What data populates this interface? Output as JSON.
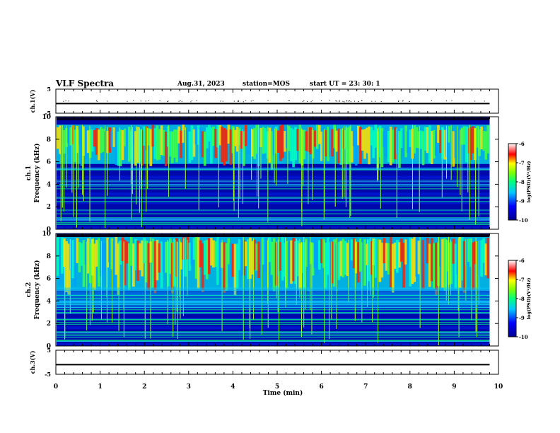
{
  "header": {
    "title": "VLF Spectra",
    "date": "Aug.31, 2023",
    "station": "station=MOS",
    "start_ut": "start  UT =   23: 30: 1"
  },
  "chart_data": [
    {
      "type": "line",
      "panel": "ch1-waveform",
      "ylabel": "ch.1(V)",
      "ylim": [
        -5,
        5
      ],
      "yticks": [
        "5",
        "-5"
      ],
      "xlim": [
        0,
        10
      ],
      "series": [
        {
          "x": [
            0,
            9.8
          ],
          "y": [
            -1,
            -1
          ]
        }
      ]
    },
    {
      "type": "heatmap",
      "panel": "ch1-spectrogram",
      "ylabel": "ch.1\nFrequency (kHz)",
      "ylim": [
        0,
        10
      ],
      "yticks": [
        "0",
        "2",
        "4",
        "6",
        "8",
        "10"
      ],
      "xlim": [
        0,
        10
      ],
      "data_end_min": 9.8,
      "colorbar": {
        "label": "log(PSD)(V²/Hz)",
        "ticks": [
          "-6",
          "-7",
          "-8",
          "-9",
          "-10"
        ],
        "range": [
          -10,
          -6
        ]
      }
    },
    {
      "type": "heatmap",
      "panel": "ch2-spectrogram",
      "ylabel": "ch.2\nFrequency (kHz)",
      "ylim": [
        0,
        10
      ],
      "yticks": [
        "0",
        "2",
        "4",
        "6",
        "8",
        "10"
      ],
      "xlim": [
        0,
        10
      ],
      "data_end_min": 9.8,
      "colorbar": {
        "label": "log(PSD)(V²/Hz)",
        "ticks": [
          "-6",
          "-7",
          "-8",
          "-9",
          "-10"
        ],
        "range": [
          -10,
          -6
        ]
      }
    },
    {
      "type": "line",
      "panel": "ch3-waveform",
      "ylabel": "ch.3(V)",
      "ylim": [
        -5,
        5
      ],
      "yticks": [
        "5",
        "-5"
      ],
      "xlim": [
        0,
        10
      ],
      "xlabel": "Time (min)",
      "xticks": [
        "0",
        "1",
        "2",
        "3",
        "4",
        "5",
        "6",
        "7",
        "8",
        "9",
        "10"
      ],
      "series": [
        {
          "x": [
            0,
            9.8
          ],
          "y": [
            -1,
            -1
          ]
        }
      ]
    }
  ]
}
